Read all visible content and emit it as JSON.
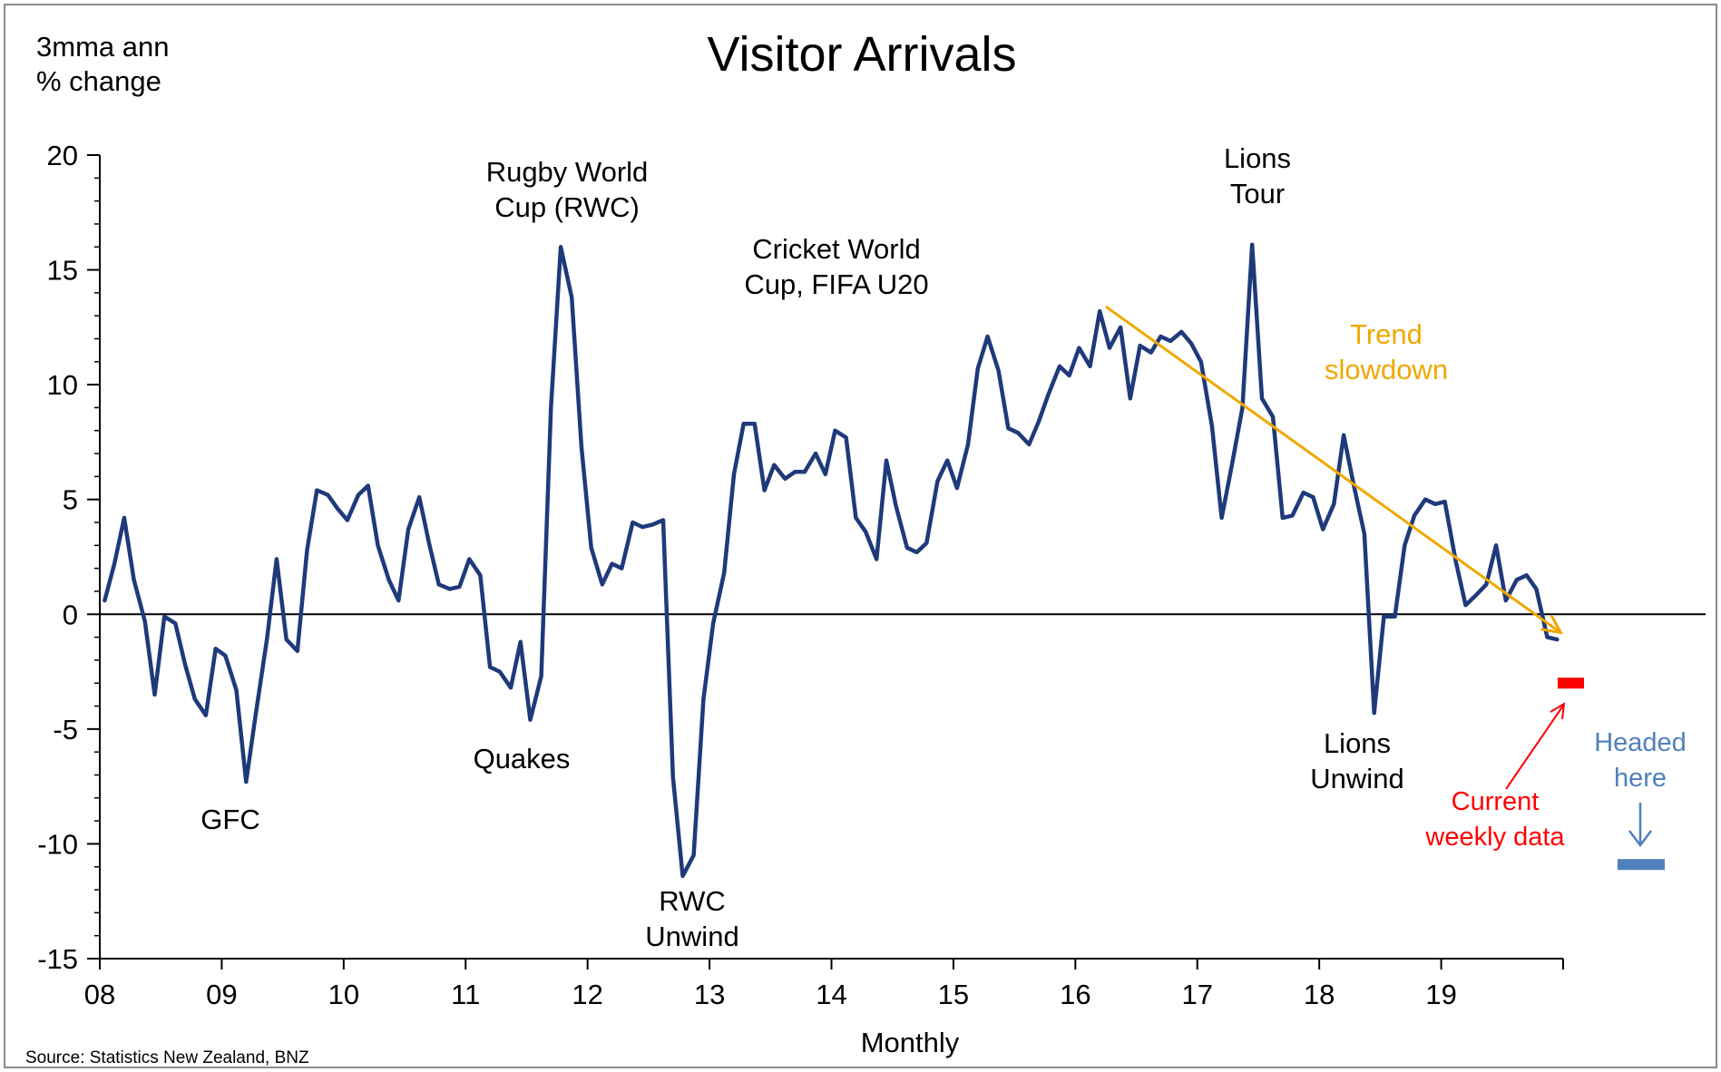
{
  "chart_data": {
    "type": "line",
    "title": "Visitor Arrivals",
    "ylabel_line1": "3mma ann",
    "ylabel_line2": "% change",
    "xlabel": "Monthly",
    "source": "Source: Statistics New Zealand, BNZ",
    "ylim": [
      -15,
      20
    ],
    "xlim": [
      2008.0,
      2020.0
    ],
    "yticks": [
      {
        "value": 20,
        "label": "20"
      },
      {
        "value": 15,
        "label": "15"
      },
      {
        "value": 10,
        "label": "10"
      },
      {
        "value": 5,
        "label": "5"
      },
      {
        "value": 0,
        "label": "0"
      },
      {
        "value": -5,
        "label": "-5"
      },
      {
        "value": -10,
        "label": "-10"
      },
      {
        "value": -15,
        "label": "-15"
      }
    ],
    "xticks": [
      {
        "value": 2008,
        "label": "08"
      },
      {
        "value": 2009,
        "label": "09"
      },
      {
        "value": 2010,
        "label": "10"
      },
      {
        "value": 2011,
        "label": "11"
      },
      {
        "value": 2012,
        "label": "12"
      },
      {
        "value": 2013,
        "label": "13"
      },
      {
        "value": 2014,
        "label": "14"
      },
      {
        "value": 2015,
        "label": "15"
      },
      {
        "value": 2016,
        "label": "16"
      },
      {
        "value": 2017,
        "label": "17"
      },
      {
        "value": 2018,
        "label": "18"
      },
      {
        "value": 2019,
        "label": "19"
      }
    ],
    "series": [
      {
        "color": "#1f3a7a",
        "points": [
          [
            2008.04,
            0.6
          ],
          [
            2008.12,
            2.2
          ],
          [
            2008.2,
            4.2
          ],
          [
            2008.28,
            1.5
          ],
          [
            2008.37,
            -0.3
          ],
          [
            2008.45,
            -3.5
          ],
          [
            2008.53,
            -0.1
          ],
          [
            2008.62,
            -0.4
          ],
          [
            2008.7,
            -2.2
          ],
          [
            2008.78,
            -3.7
          ],
          [
            2008.87,
            -4.4
          ],
          [
            2008.95,
            -1.5
          ],
          [
            2009.03,
            -1.8
          ],
          [
            2009.12,
            -3.3
          ],
          [
            2009.2,
            -7.3
          ],
          [
            2009.28,
            -4.3
          ],
          [
            2009.37,
            -1.1
          ],
          [
            2009.45,
            2.4
          ],
          [
            2009.53,
            -1.1
          ],
          [
            2009.62,
            -1.6
          ],
          [
            2009.7,
            2.8
          ],
          [
            2009.78,
            5.4
          ],
          [
            2009.87,
            5.2
          ],
          [
            2009.95,
            4.6
          ],
          [
            2010.03,
            4.1
          ],
          [
            2010.12,
            5.2
          ],
          [
            2010.2,
            5.6
          ],
          [
            2010.28,
            3.0
          ],
          [
            2010.37,
            1.5
          ],
          [
            2010.45,
            0.6
          ],
          [
            2010.53,
            3.7
          ],
          [
            2010.62,
            5.1
          ],
          [
            2010.7,
            3.1
          ],
          [
            2010.78,
            1.3
          ],
          [
            2010.87,
            1.1
          ],
          [
            2010.95,
            1.2
          ],
          [
            2011.03,
            2.4
          ],
          [
            2011.12,
            1.7
          ],
          [
            2011.2,
            -2.3
          ],
          [
            2011.28,
            -2.5
          ],
          [
            2011.37,
            -3.2
          ],
          [
            2011.45,
            -1.2
          ],
          [
            2011.53,
            -4.6
          ],
          [
            2011.62,
            -2.7
          ],
          [
            2011.7,
            9.0
          ],
          [
            2011.78,
            16.0
          ],
          [
            2011.87,
            13.8
          ],
          [
            2011.95,
            7.3
          ],
          [
            2012.03,
            2.9
          ],
          [
            2012.12,
            1.3
          ],
          [
            2012.2,
            2.2
          ],
          [
            2012.28,
            2.0
          ],
          [
            2012.37,
            4.0
          ],
          [
            2012.45,
            3.8
          ],
          [
            2012.53,
            3.9
          ],
          [
            2012.62,
            4.1
          ],
          [
            2012.7,
            -7.1
          ],
          [
            2012.78,
            -11.4
          ],
          [
            2012.87,
            -10.5
          ],
          [
            2012.95,
            -3.7
          ],
          [
            2013.03,
            -0.4
          ],
          [
            2013.12,
            1.8
          ],
          [
            2013.2,
            6.1
          ],
          [
            2013.28,
            8.3
          ],
          [
            2013.37,
            8.3
          ],
          [
            2013.45,
            5.4
          ],
          [
            2013.53,
            6.5
          ],
          [
            2013.62,
            5.9
          ],
          [
            2013.7,
            6.2
          ],
          [
            2013.78,
            6.2
          ],
          [
            2013.87,
            7.0
          ],
          [
            2013.95,
            6.1
          ],
          [
            2014.03,
            8.0
          ],
          [
            2014.12,
            7.7
          ],
          [
            2014.2,
            4.2
          ],
          [
            2014.28,
            3.6
          ],
          [
            2014.37,
            2.4
          ],
          [
            2014.45,
            6.7
          ],
          [
            2014.53,
            4.7
          ],
          [
            2014.62,
            2.9
          ],
          [
            2014.7,
            2.7
          ],
          [
            2014.78,
            3.1
          ],
          [
            2014.87,
            5.8
          ],
          [
            2014.95,
            6.7
          ],
          [
            2015.03,
            5.5
          ],
          [
            2015.12,
            7.4
          ],
          [
            2015.2,
            10.7
          ],
          [
            2015.28,
            12.1
          ],
          [
            2015.37,
            10.6
          ],
          [
            2015.45,
            8.1
          ],
          [
            2015.53,
            7.9
          ],
          [
            2015.62,
            7.4
          ],
          [
            2015.7,
            8.4
          ],
          [
            2015.78,
            9.6
          ],
          [
            2015.87,
            10.8
          ],
          [
            2015.95,
            10.4
          ],
          [
            2016.03,
            11.6
          ],
          [
            2016.12,
            10.8
          ],
          [
            2016.2,
            13.2
          ],
          [
            2016.28,
            11.6
          ],
          [
            2016.37,
            12.5
          ],
          [
            2016.45,
            9.4
          ],
          [
            2016.53,
            11.7
          ],
          [
            2016.62,
            11.4
          ],
          [
            2016.7,
            12.1
          ],
          [
            2016.78,
            11.9
          ],
          [
            2016.87,
            12.3
          ],
          [
            2016.95,
            11.8
          ],
          [
            2017.03,
            11.0
          ],
          [
            2017.12,
            8.2
          ],
          [
            2017.2,
            4.2
          ],
          [
            2017.28,
            6.4
          ],
          [
            2017.37,
            9.0
          ],
          [
            2017.45,
            16.1
          ],
          [
            2017.53,
            9.4
          ],
          [
            2017.62,
            8.6
          ],
          [
            2017.7,
            4.2
          ],
          [
            2017.78,
            4.3
          ],
          [
            2017.87,
            5.3
          ],
          [
            2017.95,
            5.1
          ],
          [
            2018.03,
            3.7
          ],
          [
            2018.12,
            4.8
          ],
          [
            2018.2,
            7.8
          ],
          [
            2018.28,
            5.7
          ],
          [
            2018.37,
            3.5
          ],
          [
            2018.45,
            -4.3
          ],
          [
            2018.53,
            -0.1
          ],
          [
            2018.62,
            -0.1
          ],
          [
            2018.7,
            3.0
          ],
          [
            2018.78,
            4.3
          ],
          [
            2018.87,
            5.0
          ],
          [
            2018.95,
            4.8
          ],
          [
            2019.03,
            4.9
          ],
          [
            2019.12,
            2.3
          ],
          [
            2019.2,
            0.4
          ],
          [
            2019.28,
            0.8
          ],
          [
            2019.37,
            1.3
          ],
          [
            2019.45,
            3.0
          ],
          [
            2019.53,
            0.6
          ],
          [
            2019.62,
            1.5
          ],
          [
            2019.7,
            1.7
          ],
          [
            2019.78,
            1.1
          ],
          [
            2019.87,
            -1.0
          ],
          [
            2019.95,
            -1.1
          ]
        ]
      }
    ],
    "annotations": [
      {
        "id": "rwc",
        "lines": [
          "Rugby World",
          "Cup (RWC)"
        ],
        "color": "#000000"
      },
      {
        "id": "cricket",
        "lines": [
          "Cricket World",
          "Cup, FIFA U20"
        ],
        "color": "#000000"
      },
      {
        "id": "lions-tour",
        "lines": [
          "Lions",
          "Tour"
        ],
        "color": "#000000"
      },
      {
        "id": "quakes",
        "lines": [
          "Quakes"
        ],
        "color": "#000000"
      },
      {
        "id": "gfc",
        "lines": [
          "GFC"
        ],
        "color": "#000000"
      },
      {
        "id": "rwc-unwind",
        "lines": [
          "RWC",
          "Unwind"
        ],
        "color": "#000000"
      },
      {
        "id": "lions-unwind",
        "lines": [
          "Lions",
          "Unwind"
        ],
        "color": "#000000"
      },
      {
        "id": "trend",
        "lines": [
          "Trend",
          "slowdown"
        ],
        "color": "#f0a800"
      },
      {
        "id": "current",
        "lines": [
          "Current",
          "weekly data"
        ],
        "color": "#ff0000"
      },
      {
        "id": "headed",
        "lines": [
          "Headed",
          "here"
        ],
        "color": "#4f81bd"
      }
    ],
    "trend_line": {
      "from": [
        2016.25,
        13.4
      ],
      "to": [
        2019.98,
        -0.8
      ],
      "color": "#f0a800"
    },
    "current_weekly_marker": {
      "value": -3.0,
      "color": "#ff0000"
    },
    "headed_here_marker": {
      "value": -10.9,
      "color": "#4f81bd"
    },
    "grid": false,
    "legend": "none"
  }
}
